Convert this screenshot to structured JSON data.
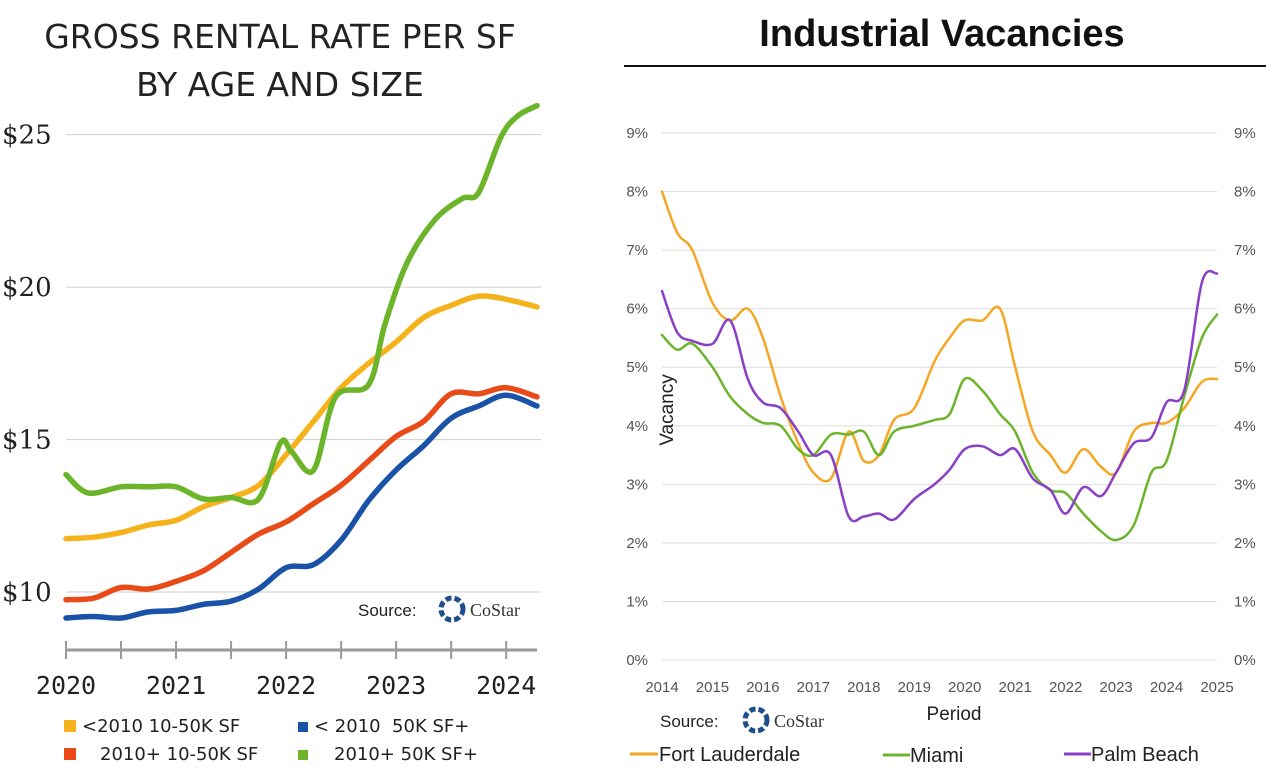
{
  "chart_data": [
    {
      "type": "line",
      "title": "GROSS RENTAL RATE PER SF",
      "subtitle": "BY AGE AND SIZE",
      "xlabel": "",
      "ylabel": "",
      "xlim": [
        2020,
        2024.28
      ],
      "ylim": [
        8.1,
        26.2
      ],
      "x_ticks": [
        2020,
        2021,
        2022,
        2023,
        2024
      ],
      "x_tick_labels": [
        "2020",
        "2021",
        "2022",
        "2023",
        "2024"
      ],
      "y_ticks": [
        10,
        15,
        20,
        25
      ],
      "y_tick_labels": [
        "$10",
        "$15",
        "$20",
        "$25"
      ],
      "grid": "horizontal",
      "legend_position": "bottom",
      "source_label": "Source:",
      "source_brand": "CoStar",
      "series": [
        {
          "name": "<2010 10-50K SF",
          "color": "#f5b21b",
          "x": [
            2020,
            2020.25,
            2020.5,
            2020.75,
            2021,
            2021.25,
            2021.5,
            2021.75,
            2022,
            2022.25,
            2022.5,
            2022.75,
            2023,
            2023.25,
            2023.5,
            2023.75,
            2024,
            2024.28
          ],
          "values": [
            11.75,
            11.8,
            11.95,
            12.2,
            12.35,
            12.8,
            13.1,
            13.5,
            14.5,
            15.6,
            16.7,
            17.5,
            18.2,
            19.0,
            19.4,
            19.7,
            19.6,
            19.35
          ]
        },
        {
          "name": "< 2010  50K SF+",
          "color": "#1a52a8",
          "x": [
            2020,
            2020.25,
            2020.5,
            2020.75,
            2021,
            2021.25,
            2021.5,
            2021.75,
            2022,
            2022.25,
            2022.5,
            2022.75,
            2023,
            2023.25,
            2023.5,
            2023.75,
            2024,
            2024.28
          ],
          "values": [
            9.15,
            9.2,
            9.15,
            9.35,
            9.4,
            9.6,
            9.7,
            10.1,
            10.8,
            10.9,
            11.7,
            13.0,
            14.0,
            14.8,
            15.7,
            16.1,
            16.45,
            16.1
          ]
        },
        {
          "name": "2010+ 10-50K SF",
          "color": "#e84a18",
          "x": [
            2020,
            2020.25,
            2020.5,
            2020.75,
            2021,
            2021.25,
            2021.5,
            2021.75,
            2022,
            2022.25,
            2022.5,
            2022.75,
            2023,
            2023.25,
            2023.5,
            2023.75,
            2024,
            2024.28
          ],
          "values": [
            9.75,
            9.8,
            10.15,
            10.1,
            10.35,
            10.7,
            11.3,
            11.9,
            12.3,
            12.9,
            13.5,
            14.3,
            15.1,
            15.6,
            16.5,
            16.5,
            16.7,
            16.4
          ]
        },
        {
          "name": "2010+ 50K SF+",
          "color": "#6cb52b",
          "x": [
            2020,
            2020.2,
            2020.5,
            2020.75,
            2021,
            2021.25,
            2021.5,
            2021.75,
            2021.95,
            2022.05,
            2022.25,
            2022.45,
            2022.75,
            2022.9,
            2023.1,
            2023.35,
            2023.6,
            2023.75,
            2023.95,
            2024.1,
            2024.28
          ],
          "values": [
            13.85,
            13.25,
            13.45,
            13.45,
            13.45,
            13.05,
            13.1,
            13.05,
            14.9,
            14.6,
            14.0,
            16.4,
            16.8,
            18.8,
            20.8,
            22.2,
            22.9,
            23.1,
            24.9,
            25.6,
            25.95
          ]
        }
      ]
    },
    {
      "type": "line",
      "title": "Industrial Vacancies",
      "xlabel": "Period",
      "ylabel": "Vacancy",
      "xlim": [
        2014,
        2025
      ],
      "ylim": [
        0,
        9
      ],
      "x_ticks": [
        2014,
        2015,
        2016,
        2017,
        2018,
        2019,
        2020,
        2021,
        2022,
        2023,
        2024,
        2025
      ],
      "x_tick_labels": [
        "2014",
        "2015",
        "2016",
        "2017",
        "2018",
        "2019",
        "2020",
        "2021",
        "2022",
        "2023",
        "2024",
        "2025"
      ],
      "y_ticks": [
        0,
        1,
        2,
        3,
        4,
        5,
        6,
        7,
        8,
        9
      ],
      "y_tick_labels": [
        "0%",
        "1%",
        "2%",
        "3%",
        "4%",
        "5%",
        "6%",
        "7%",
        "8%",
        "9%"
      ],
      "grid": "horizontal",
      "legend_position": "bottom",
      "source_label": "Source:",
      "source_brand": "CoStar",
      "series": [
        {
          "name": "Fort Lauderdale",
          "color": "#f5a623",
          "x": [
            2014,
            2014.3,
            2014.6,
            2015,
            2015.35,
            2015.7,
            2016,
            2016.35,
            2016.7,
            2017,
            2017.35,
            2017.7,
            2018,
            2018.3,
            2018.6,
            2019,
            2019.4,
            2019.7,
            2020,
            2020.35,
            2020.7,
            2021,
            2021.35,
            2021.7,
            2022,
            2022.35,
            2022.7,
            2023,
            2023.35,
            2023.7,
            2024,
            2024.35,
            2024.7,
            2025
          ],
          "values": [
            8.0,
            7.3,
            7.0,
            6.1,
            5.8,
            6.0,
            5.5,
            4.5,
            3.7,
            3.2,
            3.1,
            3.9,
            3.4,
            3.5,
            4.1,
            4.3,
            5.1,
            5.5,
            5.8,
            5.8,
            6.0,
            5.0,
            3.9,
            3.5,
            3.2,
            3.6,
            3.3,
            3.2,
            3.9,
            4.05,
            4.05,
            4.3,
            4.75,
            4.8
          ]
        },
        {
          "name": "Miami",
          "color": "#6cb52b",
          "x": [
            2014,
            2014.3,
            2014.6,
            2015,
            2015.35,
            2015.7,
            2016,
            2016.35,
            2016.7,
            2017,
            2017.35,
            2017.7,
            2018,
            2018.3,
            2018.6,
            2019,
            2019.4,
            2019.7,
            2020,
            2020.35,
            2020.7,
            2021,
            2021.35,
            2021.7,
            2022,
            2022.35,
            2022.7,
            2023,
            2023.35,
            2023.7,
            2024,
            2024.35,
            2024.7,
            2025
          ],
          "values": [
            5.55,
            5.3,
            5.4,
            5.0,
            4.5,
            4.2,
            4.05,
            4.0,
            3.6,
            3.5,
            3.85,
            3.85,
            3.9,
            3.5,
            3.9,
            4.0,
            4.1,
            4.2,
            4.8,
            4.6,
            4.2,
            3.9,
            3.2,
            2.9,
            2.85,
            2.5,
            2.2,
            2.05,
            2.3,
            3.2,
            3.4,
            4.5,
            5.5,
            5.9
          ]
        },
        {
          "name": "Palm Beach",
          "color": "#8a3fc6",
          "x": [
            2014,
            2014.3,
            2014.6,
            2015,
            2015.35,
            2015.7,
            2016,
            2016.35,
            2016.7,
            2017,
            2017.35,
            2017.7,
            2018,
            2018.3,
            2018.6,
            2019,
            2019.4,
            2019.7,
            2020,
            2020.35,
            2020.7,
            2021,
            2021.35,
            2021.7,
            2022,
            2022.35,
            2022.7,
            2023,
            2023.35,
            2023.7,
            2024,
            2024.35,
            2024.7,
            2025
          ],
          "values": [
            6.3,
            5.6,
            5.45,
            5.4,
            5.8,
            4.8,
            4.4,
            4.3,
            3.9,
            3.5,
            3.5,
            2.45,
            2.45,
            2.5,
            2.4,
            2.75,
            3.0,
            3.25,
            3.6,
            3.65,
            3.5,
            3.6,
            3.1,
            2.9,
            2.5,
            2.95,
            2.8,
            3.2,
            3.7,
            3.8,
            4.4,
            4.6,
            6.45,
            6.6
          ]
        }
      ]
    }
  ]
}
